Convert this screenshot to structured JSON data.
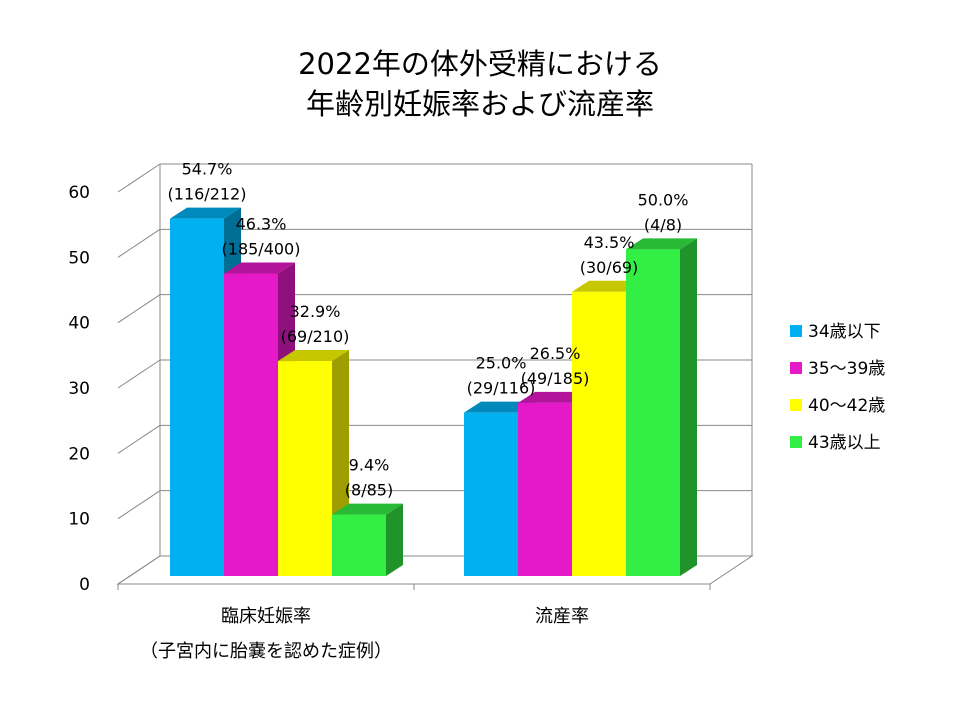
{
  "chart_data": {
    "type": "bar",
    "title_lines": [
      "2022年の体外受精における",
      "年齢別妊娠率および流産率"
    ],
    "categories": [
      "臨床妊娠率",
      "流産率"
    ],
    "category_notes": [
      "（子宮内に胎嚢を認めた症例）",
      ""
    ],
    "ylim": [
      0,
      60
    ],
    "yticks": [
      "0",
      "10",
      "20",
      "30",
      "40",
      "50",
      "60"
    ],
    "grid": true,
    "legend_position": "right",
    "series": [
      {
        "name": "34歳以下",
        "color": "#00b0f0",
        "values": [
          54.7,
          25.0
        ],
        "labels": [
          [
            "54.7%",
            "(116/212)"
          ],
          [
            "25.0%",
            "(29/116)"
          ]
        ]
      },
      {
        "name": "35〜39歳",
        "color": "#e619c8",
        "values": [
          46.3,
          26.5
        ],
        "labels": [
          [
            "46.3%",
            "(185/400)"
          ],
          [
            "26.5%",
            "(49/185)"
          ]
        ]
      },
      {
        "name": "40〜42歳",
        "color": "#ffff00",
        "values": [
          32.9,
          43.5
        ],
        "labels": [
          [
            "32.9%",
            "(69/210)"
          ],
          [
            "43.5%",
            "(30/69)"
          ]
        ]
      },
      {
        "name": "43歳以上",
        "color": "#33ee44",
        "values": [
          9.4,
          50.0
        ],
        "labels": [
          [
            "9.4%",
            "(8/85)"
          ],
          [
            "50.0%",
            "(4/8)"
          ]
        ]
      }
    ]
  }
}
